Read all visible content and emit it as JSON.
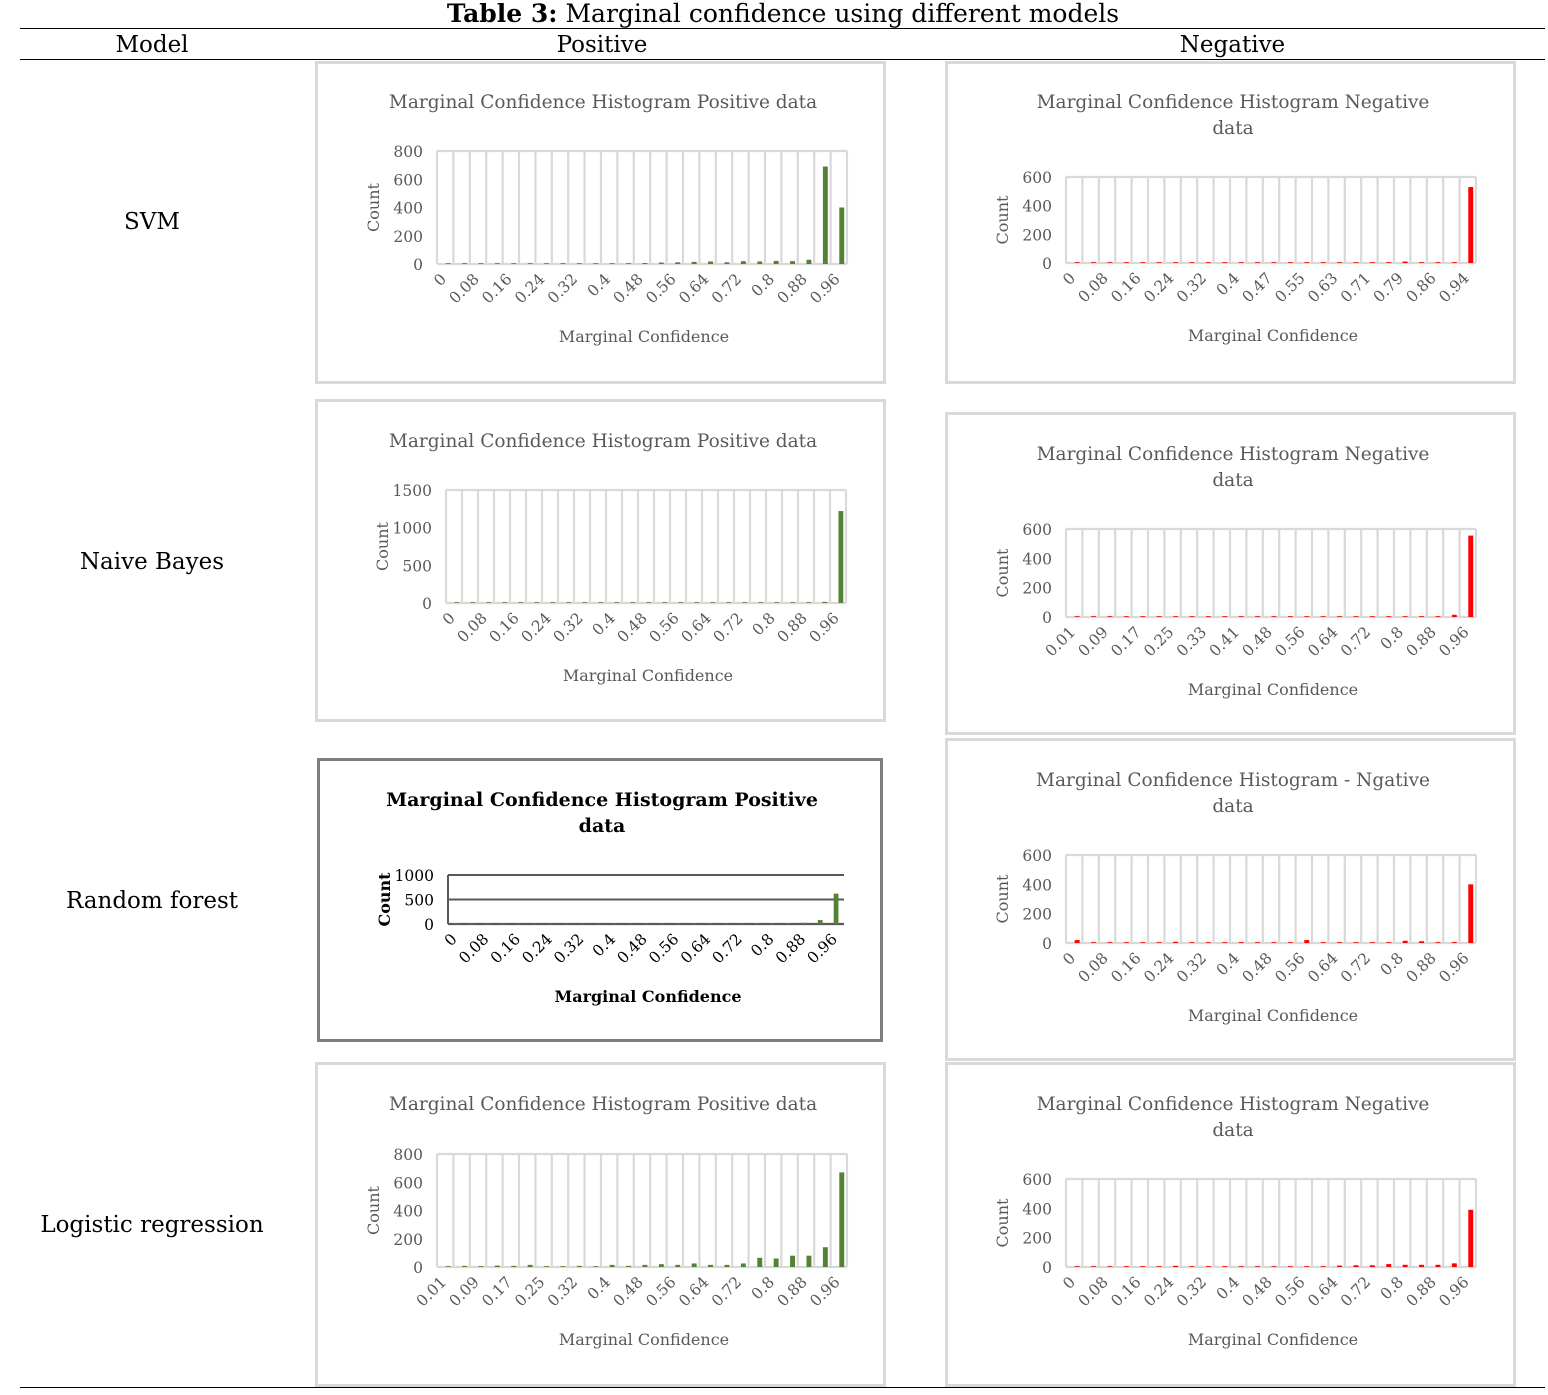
{
  "table": {
    "caption_bold": "Table 3:",
    "caption_text": " Marginal confidence using different models",
    "headers": {
      "model": "Model",
      "positive": "Positive",
      "negative": "Negative"
    },
    "rows": [
      {
        "model": "SVM"
      },
      {
        "model": "Naive Bayes"
      },
      {
        "model": "Random forest"
      },
      {
        "model": "Logistic regression"
      }
    ]
  },
  "colors": {
    "positive_bar": "#548235",
    "negative_bar": "#ff0000",
    "gridline": "#d9d9d9",
    "dark_gridline": "#595959"
  },
  "chart_data": [
    {
      "id": "svm-positive",
      "type": "bar",
      "title_lines": [
        "Marginal Confidence Histogram  Positive data"
      ],
      "xlabel": "Marginal Confidence",
      "ylabel": "Count",
      "ylim": [
        0,
        800
      ],
      "yticks": [
        "800",
        "600",
        "400",
        "200",
        "0"
      ],
      "categories": [
        "0",
        "0.04",
        "0.08",
        "0.12",
        "0.16",
        "0.2",
        "0.24",
        "0.28",
        "0.32",
        "0.36",
        "0.4",
        "0.44",
        "0.48",
        "0.52",
        "0.56",
        "0.6",
        "0.64",
        "0.68",
        "0.72",
        "0.76",
        "0.8",
        "0.84",
        "0.88",
        "0.92",
        "0.96"
      ],
      "xtick_labels": [
        "0",
        "0.08",
        "0.16",
        "0.24",
        "0.32",
        "0.4",
        "0.48",
        "0.56",
        "0.64",
        "0.72",
        "0.8",
        "0.88",
        "0.96"
      ],
      "values": [
        2,
        1,
        1,
        1,
        2,
        2,
        3,
        4,
        3,
        3,
        5,
        6,
        7,
        10,
        12,
        15,
        18,
        12,
        20,
        18,
        22,
        20,
        30,
        690,
        400
      ],
      "grid": true,
      "color": "#548235"
    },
    {
      "id": "svm-negative",
      "type": "bar",
      "title_lines": [
        "Marginal Confidence Histogram  Negative",
        "data"
      ],
      "xlabel": "Marginal Confidence",
      "ylabel": "Count",
      "ylim": [
        0,
        600
      ],
      "yticks": [
        "600",
        "400",
        "200",
        "0"
      ],
      "categories": [
        "0",
        "0.04",
        "0.08",
        "0.12",
        "0.16",
        "0.2",
        "0.24",
        "0.28",
        "0.32",
        "0.36",
        "0.4",
        "0.43",
        "0.47",
        "0.51",
        "0.55",
        "0.59",
        "0.63",
        "0.67",
        "0.71",
        "0.75",
        "0.79",
        "0.82",
        "0.86",
        "0.9",
        "0.94"
      ],
      "xtick_labels": [
        "0",
        "0.08",
        "0.16",
        "0.24",
        "0.32",
        "0.4",
        "0.47",
        "0.55",
        "0.63",
        "0.71",
        "0.79",
        "0.86",
        "0.94"
      ],
      "values": [
        1,
        0,
        1,
        0,
        1,
        1,
        1,
        1,
        2,
        1,
        2,
        1,
        3,
        1,
        2,
        2,
        3,
        2,
        3,
        4,
        10,
        3,
        4,
        6,
        530
      ],
      "grid": true,
      "color": "#ff0000"
    },
    {
      "id": "nb-positive",
      "type": "bar",
      "title_lines": [
        "Marginal Confidence Histogram  Positive data"
      ],
      "xlabel": "Marginal Confidence",
      "ylabel": "Count",
      "ylim": [
        0,
        1500
      ],
      "yticks": [
        "1500",
        "1000",
        "500",
        "0"
      ],
      "categories": [
        "0",
        "0.04",
        "0.08",
        "0.12",
        "0.16",
        "0.2",
        "0.24",
        "0.28",
        "0.32",
        "0.36",
        "0.4",
        "0.44",
        "0.48",
        "0.52",
        "0.56",
        "0.6",
        "0.64",
        "0.68",
        "0.72",
        "0.76",
        "0.8",
        "0.84",
        "0.88",
        "0.92",
        "0.96"
      ],
      "xtick_labels": [
        "0",
        "0.08",
        "0.16",
        "0.24",
        "0.32",
        "0.4",
        "0.48",
        "0.56",
        "0.64",
        "0.72",
        "0.8",
        "0.88",
        "0.96"
      ],
      "values": [
        1,
        1,
        1,
        1,
        1,
        1,
        1,
        1,
        1,
        1,
        2,
        1,
        2,
        1,
        2,
        2,
        2,
        2,
        3,
        3,
        4,
        5,
        8,
        15,
        1220
      ],
      "grid": true,
      "color": "#548235"
    },
    {
      "id": "nb-negative",
      "type": "bar",
      "title_lines": [
        "Marginal Confidence Histogram  Negative",
        "data"
      ],
      "xlabel": "Marginal Confidence",
      "ylabel": "Count",
      "ylim": [
        0,
        600
      ],
      "yticks": [
        "600",
        "400",
        "200",
        "0"
      ],
      "categories": [
        "0.01",
        "0.05",
        "0.09",
        "0.13",
        "0.17",
        "0.21",
        "0.25",
        "0.29",
        "0.33",
        "0.37",
        "0.41",
        "0.44",
        "0.48",
        "0.52",
        "0.56",
        "0.6",
        "0.64",
        "0.68",
        "0.72",
        "0.76",
        "0.8",
        "0.84",
        "0.88",
        "0.92",
        "0.96"
      ],
      "xtick_labels": [
        "0.01",
        "0.09",
        "0.17",
        "0.25",
        "0.33",
        "0.41",
        "0.48",
        "0.56",
        "0.64",
        "0.72",
        "0.8",
        "0.88",
        "0.96"
      ],
      "values": [
        1,
        0,
        1,
        0,
        1,
        1,
        1,
        1,
        1,
        1,
        2,
        1,
        2,
        1,
        2,
        2,
        2,
        2,
        3,
        3,
        4,
        5,
        5,
        15,
        555
      ],
      "grid": true,
      "color": "#ff0000"
    },
    {
      "id": "rf-positive",
      "type": "bar",
      "title_lines": [
        "Marginal Confidence Histogram  Positive",
        "data"
      ],
      "xlabel": "Marginal Confidence",
      "ylabel": "Count",
      "ylim": [
        0,
        1000
      ],
      "yticks": [
        "1000",
        "500",
        "0"
      ],
      "categories": [
        "0",
        "0.04",
        "0.08",
        "0.12",
        "0.16",
        "0.2",
        "0.24",
        "0.28",
        "0.32",
        "0.36",
        "0.4",
        "0.44",
        "0.48",
        "0.52",
        "0.56",
        "0.6",
        "0.64",
        "0.68",
        "0.72",
        "0.76",
        "0.8",
        "0.84",
        "0.88",
        "0.92",
        "0.96"
      ],
      "xtick_labels": [
        "0",
        "0.08",
        "0.16",
        "0.24",
        "0.32",
        "0.4",
        "0.48",
        "0.56",
        "0.64",
        "0.72",
        "0.8",
        "0.88",
        "0.96"
      ],
      "values": [
        20,
        8,
        18,
        6,
        12,
        8,
        10,
        8,
        8,
        8,
        15,
        10,
        12,
        8,
        10,
        12,
        20,
        15,
        10,
        20,
        15,
        20,
        25,
        80,
        620
      ],
      "grid": true,
      "bold_style": true,
      "color": "#548235"
    },
    {
      "id": "rf-negative",
      "type": "bar",
      "title_lines": [
        "Marginal Confidence Histogram - Ngative",
        "data"
      ],
      "xlabel": "Marginal Confidence",
      "ylabel": "Count",
      "ylim": [
        0,
        600
      ],
      "yticks": [
        "600",
        "400",
        "200",
        "0"
      ],
      "categories": [
        "0",
        "0.04",
        "0.08",
        "0.12",
        "0.16",
        "0.2",
        "0.24",
        "0.28",
        "0.32",
        "0.36",
        "0.4",
        "0.44",
        "0.48",
        "0.52",
        "0.56",
        "0.6",
        "0.64",
        "0.68",
        "0.72",
        "0.76",
        "0.8",
        "0.84",
        "0.88",
        "0.92",
        "0.96"
      ],
      "xtick_labels": [
        "0",
        "0.08",
        "0.16",
        "0.24",
        "0.32",
        "0.4",
        "0.48",
        "0.56",
        "0.64",
        "0.72",
        "0.8",
        "0.88",
        "0.96"
      ],
      "values": [
        20,
        2,
        3,
        2,
        3,
        4,
        8,
        3,
        3,
        2,
        6,
        3,
        4,
        2,
        20,
        3,
        3,
        2,
        5,
        3,
        15,
        12,
        5,
        6,
        400
      ],
      "grid": true,
      "color": "#ff0000"
    },
    {
      "id": "lr-positive",
      "type": "bar",
      "title_lines": [
        "Marginal Confidence Histogram  Positive data"
      ],
      "xlabel": "Marginal Confidence",
      "ylabel": "Count",
      "ylim": [
        0,
        800
      ],
      "yticks": [
        "800",
        "600",
        "400",
        "200",
        "0"
      ],
      "categories": [
        "0.01",
        "0.05",
        "0.09",
        "0.13",
        "0.17",
        "0.21",
        "0.25",
        "0.29",
        "0.32",
        "0.36",
        "0.4",
        "0.44",
        "0.48",
        "0.52",
        "0.56",
        "0.6",
        "0.64",
        "0.68",
        "0.72",
        "0.76",
        "0.8",
        "0.84",
        "0.88",
        "0.92",
        "0.96"
      ],
      "xtick_labels": [
        "0.01",
        "0.09",
        "0.17",
        "0.25",
        "0.32",
        "0.4",
        "0.48",
        "0.56",
        "0.64",
        "0.72",
        "0.8",
        "0.88",
        "0.96"
      ],
      "values": [
        5,
        8,
        6,
        10,
        8,
        15,
        6,
        5,
        8,
        5,
        15,
        8,
        15,
        20,
        15,
        25,
        15,
        15,
        25,
        65,
        60,
        80,
        80,
        140,
        670
      ],
      "grid": true,
      "color": "#548235"
    },
    {
      "id": "lr-negative",
      "type": "bar",
      "title_lines": [
        "Marginal Confidence Histogram  Negative",
        "data"
      ],
      "xlabel": "Marginal Confidence",
      "ylabel": "Count",
      "ylim": [
        0,
        600
      ],
      "yticks": [
        "600",
        "400",
        "200",
        "0"
      ],
      "categories": [
        "0",
        "0.04",
        "0.08",
        "0.12",
        "0.16",
        "0.2",
        "0.24",
        "0.28",
        "0.32",
        "0.36",
        "0.4",
        "0.44",
        "0.48",
        "0.52",
        "0.56",
        "0.6",
        "0.64",
        "0.68",
        "0.72",
        "0.76",
        "0.8",
        "0.84",
        "0.88",
        "0.92",
        "0.96"
      ],
      "xtick_labels": [
        "0",
        "0.08",
        "0.16",
        "0.24",
        "0.32",
        "0.4",
        "0.48",
        "0.56",
        "0.64",
        "0.72",
        "0.8",
        "0.88",
        "0.96"
      ],
      "values": [
        2,
        1,
        2,
        1,
        2,
        2,
        8,
        2,
        3,
        3,
        3,
        2,
        3,
        3,
        4,
        3,
        10,
        12,
        12,
        20,
        15,
        15,
        15,
        25,
        390
      ],
      "grid": true,
      "color": "#ff0000"
    }
  ]
}
